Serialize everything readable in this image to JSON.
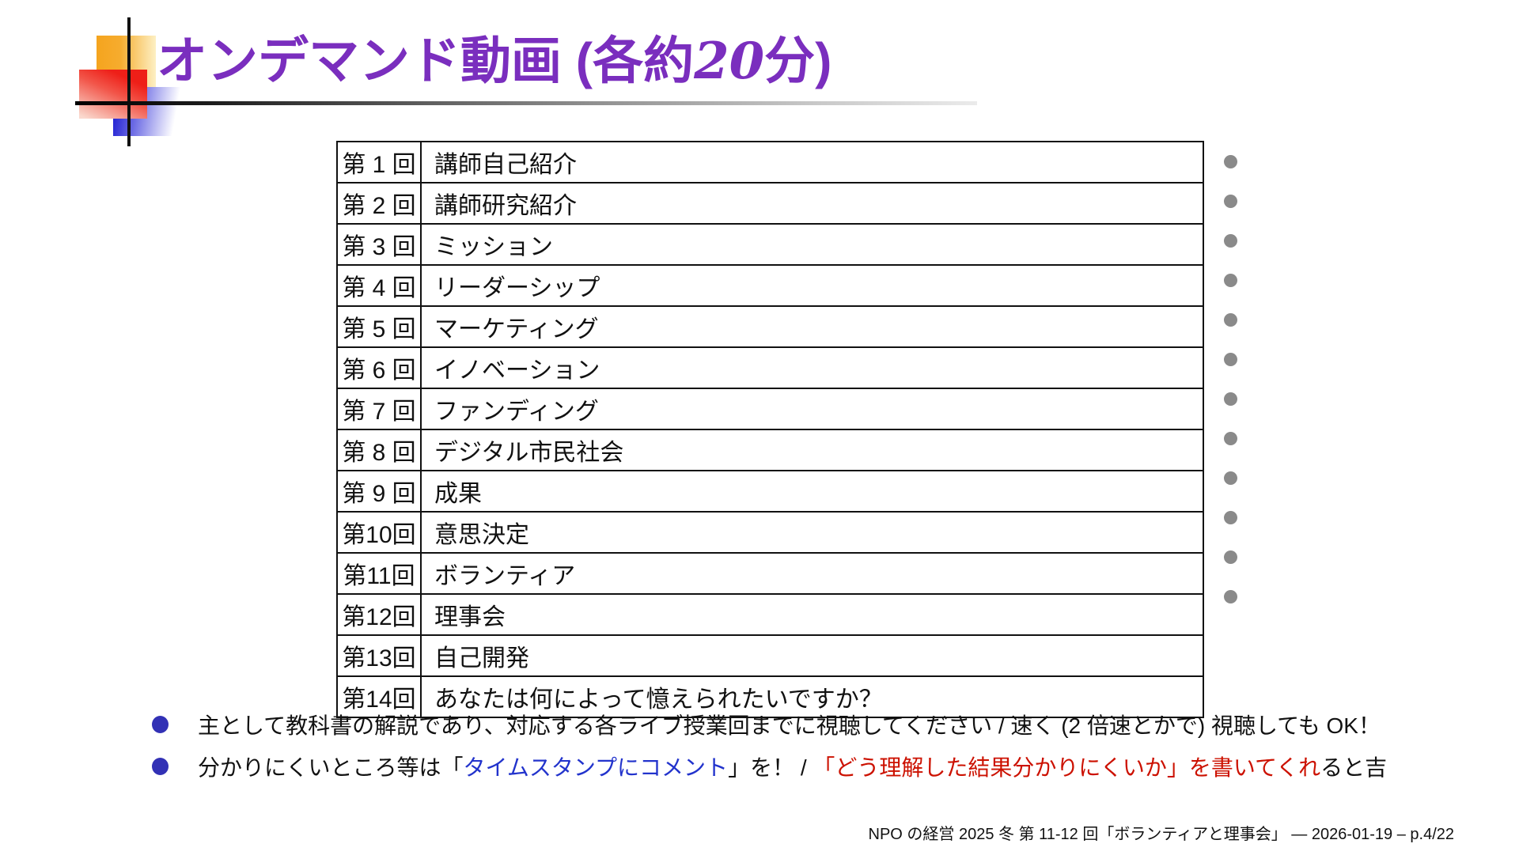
{
  "title": {
    "main": "オンデマンド動画",
    "sub_open": " (各約",
    "sub_number": "20",
    "sub_close": "分)"
  },
  "colors": {
    "title_purple": "#7A2EBE",
    "link_blue": "#2233CC",
    "alert_red": "#CC1100",
    "bullet_blue": "#3231B5",
    "dot_gray": "#8A8A8A"
  },
  "table": {
    "rows": [
      {
        "label": "第 1 回",
        "topic": "講師自己紹介",
        "dot": true
      },
      {
        "label": "第 2 回",
        "topic": "講師研究紹介",
        "dot": true
      },
      {
        "label": "第 3 回",
        "topic": "ミッション",
        "dot": true
      },
      {
        "label": "第 4 回",
        "topic": "リーダーシップ",
        "dot": true
      },
      {
        "label": "第 5 回",
        "topic": "マーケティング",
        "dot": true
      },
      {
        "label": "第 6 回",
        "topic": "イノベーション",
        "dot": true
      },
      {
        "label": "第 7 回",
        "topic": "ファンディング",
        "dot": true
      },
      {
        "label": "第 8 回",
        "topic": "デジタル市民社会",
        "dot": true
      },
      {
        "label": "第 9 回",
        "topic": "成果",
        "dot": true
      },
      {
        "label": "第10回",
        "topic": "意思決定",
        "dot": true
      },
      {
        "label": "第11回",
        "topic": "ボランティア",
        "dot": true
      },
      {
        "label": "第12回",
        "topic": "理事会",
        "dot": true
      },
      {
        "label": "第13回",
        "topic": "自己開発",
        "dot": false
      },
      {
        "label": "第14回",
        "topic": "あなたは何によって憶えられたいですか？",
        "dot": false
      }
    ]
  },
  "bullets": [
    {
      "segments": [
        {
          "text": "主として教科書の解説であり、対応する各ライブ授業回までに視聴してください / 速く (2 倍速とかで) 視聴しても OK！",
          "color": "#111111"
        }
      ]
    },
    {
      "segments": [
        {
          "text": "分かりにくいところ等は「",
          "color": "#111111"
        },
        {
          "text": "タイムスタンプにコメント",
          "color": "#2233CC"
        },
        {
          "text": "」を！ / ",
          "color": "#111111"
        },
        {
          "text": "「どう理解した結果分かりにくいか」を書いてくれ",
          "color": "#CC1100"
        },
        {
          "text": "ると吉",
          "color": "#111111"
        }
      ]
    }
  ],
  "footer": {
    "text": "NPO の経営 2025 冬 第 11-12 回「ボランティアと理事会」 — 2026-01-19 – p.4/22"
  }
}
